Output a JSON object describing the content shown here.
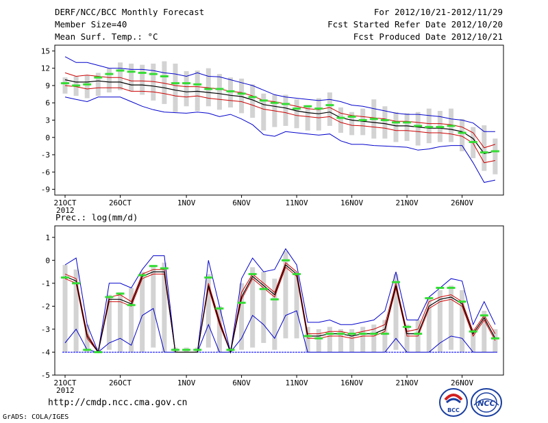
{
  "header": {
    "title": "DERF/NCC/BCC Monthly Forecast",
    "member_size": "Member Size=40",
    "variable": "Mean Surf. Temp.: °C",
    "period": "For 2012/10/21-2012/11/29",
    "started": "Fcst Started Refer Date 2012/10/20",
    "produced": "Fcst Produced Date 2012/10/21"
  },
  "footer": {
    "url": "http://cmdp.ncc.cma.gov.cn",
    "credit": "GrADS: COLA/IGES",
    "logo_left_text": "BCC",
    "logo_right_text": "NCC"
  },
  "colors": {
    "mean": "#000000",
    "inner": "#cc0000",
    "outer": "#0000cc",
    "box": "#d3d3d3",
    "median": "#33dd33",
    "floor": "#0000ff"
  },
  "chart_data": [
    {
      "type": "box-ensemble",
      "title": "Mean Surf. Temp.: °C",
      "ylabel": "°C",
      "ylim": [
        -10,
        16
      ],
      "yticks": [
        -9,
        -6,
        -3,
        0,
        3,
        6,
        9,
        12,
        15
      ],
      "categories": [
        "21OCT",
        "22OCT",
        "23OCT",
        "24OCT",
        "25OCT",
        "26OCT",
        "27OCT",
        "28OCT",
        "29OCT",
        "30OCT",
        "31OCT",
        "1NOV",
        "2NOV",
        "3NOV",
        "4NOV",
        "5NOV",
        "6NOV",
        "7NOV",
        "8NOV",
        "9NOV",
        "10NOV",
        "11NOV",
        "12NOV",
        "13NOV",
        "14NOV",
        "15NOV",
        "16NOV",
        "17NOV",
        "18NOV",
        "19NOV",
        "20NOV",
        "21NOV",
        "22NOV",
        "23NOV",
        "24NOV",
        "25NOV",
        "26NOV",
        "27NOV",
        "28NOV",
        "29NOV"
      ],
      "xtick_labels": [
        {
          "index": 0,
          "label": "21OCT",
          "sub": "2012"
        },
        {
          "index": 5,
          "label": "26OCT",
          "sub": ""
        },
        {
          "index": 11,
          "label": "1NOV",
          "sub": ""
        },
        {
          "index": 16,
          "label": "6NOV",
          "sub": ""
        },
        {
          "index": 21,
          "label": "11NOV",
          "sub": ""
        },
        {
          "index": 26,
          "label": "16NOV",
          "sub": ""
        },
        {
          "index": 31,
          "label": "21NOV",
          "sub": ""
        },
        {
          "index": 36,
          "label": "26NOV",
          "sub": ""
        }
      ],
      "series": [
        {
          "name": "max",
          "values": [
            14,
            13,
            13,
            12.5,
            12,
            12,
            11.8,
            11.8,
            11.6,
            11.2,
            11,
            10.6,
            11.2,
            10.6,
            10.5,
            10,
            9.5,
            9,
            8.2,
            7.4,
            7,
            6.8,
            6.6,
            6.4,
            6.6,
            6.2,
            5.6,
            5.4,
            5,
            4.6,
            4.2,
            4,
            4,
            3.8,
            3.6,
            3.2,
            3,
            2.5,
            1,
            1
          ]
        },
        {
          "name": "upper",
          "values": [
            11.2,
            10.6,
            10.8,
            10.6,
            10.4,
            10.4,
            9.8,
            9.8,
            9.7,
            9.4,
            9,
            8.8,
            8.8,
            8.6,
            8.4,
            8,
            7.8,
            7.2,
            6.4,
            6.2,
            5.8,
            5.4,
            5,
            4.8,
            5.2,
            4.2,
            3.8,
            3.6,
            3.4,
            3.2,
            2.8,
            2.8,
            2.6,
            2.4,
            2.4,
            2.2,
            1.8,
            0.8,
            -1.8,
            -1.2
          ]
        },
        {
          "name": "mean",
          "values": [
            10,
            9.6,
            9.6,
            9.8,
            9.6,
            9.6,
            9.1,
            9.1,
            8.9,
            8.6,
            8.2,
            7.9,
            8,
            7.8,
            7.6,
            7.3,
            7.1,
            6.5,
            5.7,
            5.4,
            5.1,
            4.6,
            4.3,
            4.1,
            4.4,
            3.4,
            3,
            2.8,
            2.6,
            2.4,
            2,
            2,
            1.8,
            1.6,
            1.6,
            1.4,
            1,
            -0.2,
            -2.8,
            -2.4
          ]
        },
        {
          "name": "lower",
          "values": [
            9,
            8.8,
            8.4,
            8.6,
            8.6,
            8.6,
            8,
            8,
            7.9,
            7.6,
            7.2,
            7,
            7.2,
            6.8,
            6.6,
            6.4,
            6.2,
            5.6,
            4.9,
            4.6,
            4.3,
            3.8,
            3.6,
            3.4,
            3.6,
            2.6,
            2.1,
            2,
            1.8,
            1.6,
            1.2,
            1.2,
            1,
            0.8,
            0.8,
            0.6,
            0.2,
            -1,
            -4.4,
            -4
          ]
        },
        {
          "name": "min",
          "values": [
            7,
            6.6,
            6.2,
            7,
            7,
            7,
            6.2,
            5.4,
            4.8,
            4.4,
            4.3,
            4.2,
            4.4,
            4.2,
            3.6,
            4,
            3.2,
            2.2,
            0.5,
            0.2,
            1,
            0.8,
            0.6,
            0.4,
            0.6,
            -0.6,
            -1.2,
            -1.2,
            -1.4,
            -1.5,
            -1.6,
            -1.7,
            -2.2,
            -2,
            -1.6,
            -1.4,
            -1.4,
            -4.4,
            -7.8,
            -7.4
          ]
        },
        {
          "name": "box_high",
          "values": [
            10.4,
            10.6,
            10.8,
            11.2,
            12,
            13,
            12.8,
            12.6,
            12.8,
            13.2,
            12.8,
            11.5,
            11.6,
            12,
            11,
            10.4,
            10.2,
            9.2,
            7.6,
            7.4,
            7.4,
            6.6,
            5.6,
            6.8,
            7.8,
            5.2,
            4.4,
            5,
            6.6,
            5.4,
            4.4,
            4.2,
            4.4,
            5,
            4.6,
            5,
            3.2,
            1.8,
            2.1,
            -0.2
          ]
        },
        {
          "name": "box_low",
          "values": [
            7.6,
            7.2,
            6.8,
            7.2,
            7.8,
            8.2,
            8,
            7.4,
            6.4,
            5.8,
            4.4,
            5.4,
            4.6,
            5.4,
            4.8,
            5.2,
            4.2,
            3.4,
            1.2,
            1.8,
            2,
            1.6,
            1.2,
            1.2,
            2,
            0.8,
            0.4,
            0.4,
            -0.2,
            -0.2,
            -0.8,
            -0.6,
            -1.4,
            -1,
            -0.8,
            -0.8,
            -2.4,
            -3.6,
            -5.8,
            -6.4
          ]
        },
        {
          "name": "median",
          "values": [
            9.4,
            9,
            9.2,
            10.4,
            11,
            11.6,
            11.4,
            11.2,
            11,
            10.6,
            9.4,
            9.4,
            9.2,
            8.4,
            8.4,
            8,
            7.6,
            7,
            6.4,
            6,
            5.8,
            5,
            5.4,
            5,
            5.6,
            3.4,
            3.6,
            3,
            3.2,
            3,
            2.6,
            2.6,
            2,
            1.8,
            1.8,
            2,
            0.8,
            -0.8,
            -2.6,
            -2.4
          ]
        }
      ]
    },
    {
      "type": "box-ensemble",
      "title": "Prec.: log(mm/d)",
      "ylabel": "log(mm/d)",
      "ylim": [
        -5,
        1.5
      ],
      "yticks": [
        -5,
        -4,
        -3,
        -2,
        -1,
        0,
        1
      ],
      "floor_value": -4,
      "categories": [
        "21OCT",
        "22OCT",
        "23OCT",
        "24OCT",
        "25OCT",
        "26OCT",
        "27OCT",
        "28OCT",
        "29OCT",
        "30OCT",
        "31OCT",
        "1NOV",
        "2NOV",
        "3NOV",
        "4NOV",
        "5NOV",
        "6NOV",
        "7NOV",
        "8NOV",
        "9NOV",
        "10NOV",
        "11NOV",
        "12NOV",
        "13NOV",
        "14NOV",
        "15NOV",
        "16NOV",
        "17NOV",
        "18NOV",
        "19NOV",
        "20NOV",
        "21NOV",
        "22NOV",
        "23NOV",
        "24NOV",
        "25NOV",
        "26NOV",
        "27NOV",
        "28NOV",
        "29NOV"
      ],
      "xtick_labels": [
        {
          "index": 0,
          "label": "21OCT",
          "sub": "2012"
        },
        {
          "index": 5,
          "label": "26OCT",
          "sub": ""
        },
        {
          "index": 11,
          "label": "1NOV",
          "sub": ""
        },
        {
          "index": 16,
          "label": "6NOV",
          "sub": ""
        },
        {
          "index": 21,
          "label": "11NOV",
          "sub": ""
        },
        {
          "index": 26,
          "label": "16NOV",
          "sub": ""
        },
        {
          "index": 31,
          "label": "21NOV",
          "sub": ""
        },
        {
          "index": 36,
          "label": "26NOV",
          "sub": ""
        }
      ],
      "series": [
        {
          "name": "max",
          "values": [
            -0.2,
            0.1,
            -2.8,
            -4,
            -1,
            -1,
            -1.2,
            -0.4,
            0.2,
            0.2,
            -4,
            -4,
            -4,
            0,
            -2,
            -4,
            -0.8,
            0.1,
            -0.5,
            -0.4,
            0.5,
            -0.2,
            -2.7,
            -2.7,
            -2.6,
            -2.8,
            -2.8,
            -2.7,
            -2.6,
            -2.2,
            -0.5,
            -2.6,
            -2.6,
            -1.6,
            -1.2,
            -0.8,
            -0.9,
            -2.8,
            -1.8,
            -2.8
          ]
        },
        {
          "name": "upper",
          "values": [
            -0.6,
            -0.8,
            -3.2,
            -4,
            -1.6,
            -1.5,
            -1.8,
            -0.6,
            -0.4,
            -0.4,
            -4,
            -4,
            -4,
            -1,
            -2.6,
            -4,
            -1.4,
            -0.6,
            -1,
            -1.4,
            -0.1,
            -0.5,
            -3.2,
            -3.2,
            -3.1,
            -3.1,
            -3.2,
            -3.1,
            -3,
            -2.8,
            -1,
            -3.1,
            -3,
            -1.8,
            -1.6,
            -1.5,
            -1.8,
            -3.1,
            -2.4,
            -3.2
          ]
        },
        {
          "name": "mean",
          "values": [
            -0.7,
            -0.9,
            -3.3,
            -4,
            -1.7,
            -1.7,
            -1.9,
            -0.7,
            -0.5,
            -0.5,
            -4,
            -4,
            -4,
            -1.1,
            -2.7,
            -4,
            -1.6,
            -0.7,
            -1.1,
            -1.5,
            -0.2,
            -0.6,
            -3.3,
            -3.3,
            -3.2,
            -3.2,
            -3.3,
            -3.2,
            -3.2,
            -3,
            -1.1,
            -3.2,
            -3.2,
            -2,
            -1.7,
            -1.6,
            -1.9,
            -3.2,
            -2.5,
            -3.4
          ]
        },
        {
          "name": "lower",
          "values": [
            -0.8,
            -1,
            -3.4,
            -4,
            -1.8,
            -1.8,
            -2,
            -0.8,
            -0.6,
            -0.6,
            -4,
            -4,
            -4,
            -1.2,
            -2.8,
            -4,
            -1.7,
            -0.8,
            -1.2,
            -1.6,
            -0.3,
            -0.7,
            -3.4,
            -3.4,
            -3.3,
            -3.3,
            -3.4,
            -3.3,
            -3.3,
            -3.1,
            -1.2,
            -3.3,
            -3.3,
            -2.1,
            -1.8,
            -1.7,
            -2,
            -3.3,
            -2.6,
            -3.5
          ]
        },
        {
          "name": "min",
          "values": [
            -3.6,
            -3,
            -3.9,
            -4,
            -3.6,
            -3.4,
            -3.7,
            -2.4,
            -2.1,
            -4,
            -4,
            -4,
            -4,
            -2.8,
            -4,
            -4,
            -3.4,
            -2.4,
            -2.8,
            -3.4,
            -2.4,
            -2.2,
            -4,
            -4,
            -4,
            -4,
            -4,
            -4,
            -4,
            -4,
            -3.4,
            -4,
            -4,
            -4,
            -3.6,
            -3.3,
            -3.4,
            -4,
            -4,
            -4
          ]
        },
        {
          "name": "box_high",
          "values": [
            -0.2,
            -0.4,
            -2.8,
            -3.8,
            -1.5,
            -1.4,
            -1.2,
            -0.5,
            -0.2,
            -0.1,
            -3.8,
            -3.8,
            -3.8,
            -0.6,
            -2,
            -3.8,
            -1,
            -0.3,
            -0.5,
            -0.8,
            0.4,
            -0.6,
            -2.9,
            -3,
            -2.9,
            -3,
            -3,
            -2.9,
            -2.8,
            -2.6,
            -0.6,
            -2.8,
            -2.6,
            -1.6,
            -1.3,
            -1.1,
            -1.3,
            -3,
            -2.2,
            -3
          ]
        },
        {
          "name": "box_low",
          "values": [
            -4,
            -4,
            -4,
            -4,
            -3.9,
            -4,
            -4,
            -4,
            -3.8,
            -4,
            -4,
            -4,
            -4,
            -3.8,
            -4,
            -4,
            -3.9,
            -3.8,
            -3.6,
            -3.9,
            -3.4,
            -3.4,
            -4,
            -4,
            -4,
            -4,
            -4,
            -4,
            -4,
            -4,
            -3.9,
            -4,
            -4,
            -4,
            -4,
            -3.9,
            -4,
            -4,
            -4,
            -4
          ]
        },
        {
          "name": "median",
          "values": [
            -0.75,
            -1,
            -3.9,
            -4,
            -1.6,
            -1.45,
            -1.95,
            -0.65,
            -0.25,
            -0.35,
            -3.9,
            -3.9,
            -3.9,
            -0.75,
            -2.1,
            -3.9,
            -1.85,
            -0.6,
            -1.25,
            -1.7,
            0,
            -0.6,
            -3.3,
            -3.4,
            -3.2,
            -3.2,
            -3.2,
            -3.2,
            -3.2,
            -3.2,
            -0.95,
            -2.9,
            -3.2,
            -1.65,
            -1.2,
            -1.2,
            -1.8,
            -3.1,
            -2.4,
            -3.4
          ]
        }
      ]
    }
  ]
}
